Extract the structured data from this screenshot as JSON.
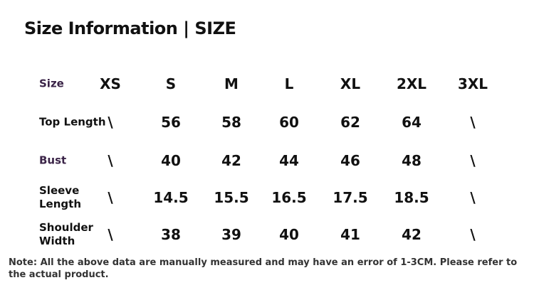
{
  "title": "Size Information | SIZE",
  "table": {
    "header": [
      "Size",
      "XS",
      "S",
      "M",
      "L",
      "XL",
      "2XL",
      "3XL"
    ],
    "rows": [
      [
        "Top Length",
        "\\",
        56,
        58,
        60,
        62,
        64,
        "\\"
      ],
      [
        "Bust",
        "\\",
        40,
        42,
        44,
        46,
        48,
        "\\"
      ],
      [
        "Sleeve Length",
        "\\",
        14.5,
        15.5,
        16.5,
        17.5,
        18.5,
        "\\"
      ],
      [
        "Shoulder Width",
        "\\",
        38,
        39,
        40,
        41,
        42,
        "\\"
      ]
    ]
  },
  "note": "Note: All the above data are manually measured and may have an error of 1-3CM. Please refer to the actual product."
}
